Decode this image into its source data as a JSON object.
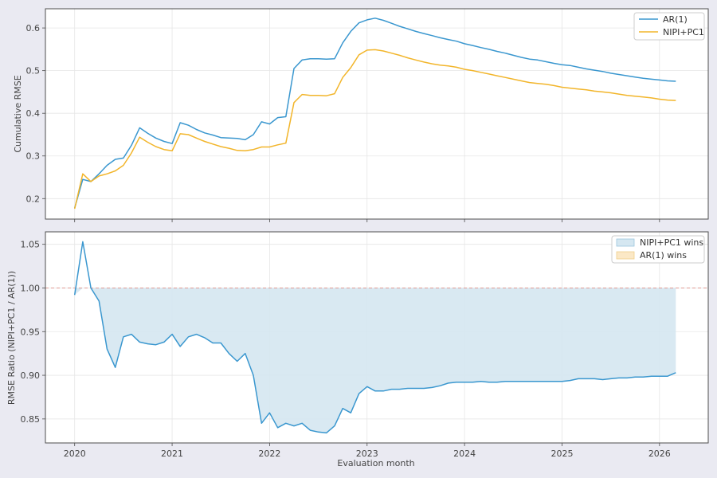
{
  "colors": {
    "background": "#eaeaf2",
    "panel": "#ffffff",
    "grid": "#e6e6e6",
    "ar1": "#3a97cf",
    "nipi": "#f2b52a",
    "fill_nipi_wins": "#d5e7f1",
    "fill_ar1_wins": "#fbe8c6",
    "reference_line": "#e09a94"
  },
  "chart_data": [
    {
      "type": "line",
      "xlabel": "",
      "ylabel": "Cumulative RMSE",
      "ylim": [
        0.152,
        0.645
      ],
      "xlim": [
        2019.7,
        2026.5
      ],
      "yticks": [
        "0.2",
        "0.3",
        "0.4",
        "0.5",
        "0.6"
      ],
      "xticks": [],
      "grid": true,
      "legend": "top-right",
      "x": [
        2020.0,
        2020.083,
        2020.167,
        2020.25,
        2020.333,
        2020.417,
        2020.5,
        2020.583,
        2020.667,
        2020.75,
        2020.833,
        2020.917,
        2021.0,
        2021.083,
        2021.167,
        2021.25,
        2021.333,
        2021.417,
        2021.5,
        2021.583,
        2021.667,
        2021.75,
        2021.833,
        2021.917,
        2022.0,
        2022.083,
        2022.167,
        2022.25,
        2022.333,
        2022.417,
        2022.5,
        2022.583,
        2022.667,
        2022.75,
        2022.833,
        2022.917,
        2023.0,
        2023.083,
        2023.167,
        2023.25,
        2023.333,
        2023.417,
        2023.5,
        2023.583,
        2023.667,
        2023.75,
        2023.833,
        2023.917,
        2024.0,
        2024.083,
        2024.167,
        2024.25,
        2024.333,
        2024.417,
        2024.5,
        2024.583,
        2024.667,
        2024.75,
        2024.833,
        2024.917,
        2025.0,
        2025.083,
        2025.167,
        2025.25,
        2025.333,
        2025.417,
        2025.5,
        2025.583,
        2025.667,
        2025.75,
        2025.833,
        2025.917,
        2026.0,
        2026.083,
        2026.167
      ],
      "series": [
        {
          "name": "AR(1)",
          "color_key": "ar1",
          "values": [
            0.178,
            0.245,
            0.24,
            0.258,
            0.278,
            0.292,
            0.295,
            0.325,
            0.366,
            0.353,
            0.342,
            0.334,
            0.329,
            0.378,
            0.372,
            0.362,
            0.354,
            0.349,
            0.343,
            0.342,
            0.341,
            0.338,
            0.35,
            0.38,
            0.375,
            0.39,
            0.392,
            0.505,
            0.525,
            0.528,
            0.528,
            0.527,
            0.528,
            0.565,
            0.592,
            0.612,
            0.619,
            0.623,
            0.618,
            0.611,
            0.604,
            0.598,
            0.592,
            0.587,
            0.582,
            0.577,
            0.573,
            0.569,
            0.563,
            0.559,
            0.554,
            0.55,
            0.545,
            0.541,
            0.536,
            0.531,
            0.527,
            0.525,
            0.521,
            0.517,
            0.514,
            0.512,
            0.508,
            0.504,
            0.501,
            0.498,
            0.494,
            0.491,
            0.488,
            0.485,
            0.482,
            0.48,
            0.478,
            0.476,
            0.475
          ]
        },
        {
          "name": "NIPI+PC1",
          "color_key": "nipi",
          "values": [
            0.176,
            0.258,
            0.24,
            0.253,
            0.258,
            0.265,
            0.278,
            0.307,
            0.344,
            0.332,
            0.322,
            0.315,
            0.312,
            0.352,
            0.35,
            0.342,
            0.334,
            0.328,
            0.322,
            0.318,
            0.313,
            0.312,
            0.315,
            0.321,
            0.321,
            0.326,
            0.33,
            0.425,
            0.444,
            0.442,
            0.442,
            0.441,
            0.446,
            0.484,
            0.507,
            0.537,
            0.548,
            0.549,
            0.546,
            0.541,
            0.536,
            0.53,
            0.525,
            0.52,
            0.516,
            0.513,
            0.511,
            0.508,
            0.503,
            0.5,
            0.496,
            0.492,
            0.488,
            0.484,
            0.48,
            0.476,
            0.472,
            0.47,
            0.468,
            0.465,
            0.461,
            0.459,
            0.457,
            0.455,
            0.452,
            0.45,
            0.448,
            0.445,
            0.442,
            0.44,
            0.438,
            0.436,
            0.433,
            0.431,
            0.43
          ]
        }
      ]
    },
    {
      "type": "area",
      "xlabel": "Evaluation month",
      "ylabel": "RMSE Ratio (NIPI+PC1 / AR(1))",
      "ylim": [
        0.8225,
        1.0643
      ],
      "xlim": [
        2019.7,
        2026.5
      ],
      "yticks": [
        "0.85",
        "0.90",
        "0.95",
        "1.00",
        "1.05"
      ],
      "xticks": [
        "2020",
        "2021",
        "2022",
        "2023",
        "2024",
        "2025",
        "2026"
      ],
      "reference_y": 1.0,
      "grid": true,
      "legend": "top-right",
      "legend_entries": [
        {
          "label": "NIPI+PC1 wins",
          "color_key": "fill_nipi_wins"
        },
        {
          "label": "AR(1) wins",
          "color_key": "fill_ar1_wins"
        }
      ],
      "series": [
        {
          "name": "",
          "color_key": "ar1",
          "values": [
            0.992,
            1.053,
            1.0,
            0.985,
            0.93,
            0.909,
            0.944,
            0.947,
            0.938,
            0.936,
            0.935,
            0.938,
            0.947,
            0.933,
            0.944,
            0.947,
            0.943,
            0.937,
            0.937,
            0.925,
            0.916,
            0.925,
            0.9,
            0.845,
            0.857,
            0.84,
            0.845,
            0.842,
            0.845,
            0.837,
            0.835,
            0.834,
            0.842,
            0.862,
            0.857,
            0.879,
            0.887,
            0.882,
            0.882,
            0.884,
            0.884,
            0.885,
            0.885,
            0.885,
            0.886,
            0.888,
            0.891,
            0.892,
            0.892,
            0.892,
            0.893,
            0.892,
            0.892,
            0.893,
            0.893,
            0.893,
            0.893,
            0.893,
            0.893,
            0.893,
            0.893,
            0.894,
            0.896,
            0.896,
            0.896,
            0.895,
            0.896,
            0.897,
            0.897,
            0.898,
            0.898,
            0.899,
            0.899,
            0.899,
            0.903
          ]
        }
      ]
    }
  ]
}
